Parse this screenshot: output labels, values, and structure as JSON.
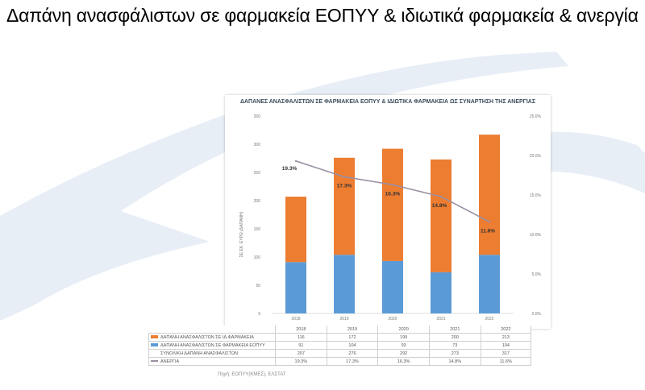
{
  "slide": {
    "title": "Δαπάνη ανασφάλιστων σε φαρμακεία ΕΟΠΥΥ & ιδιωτικά φαρμακεία & ανεργία",
    "source": "Πηγή: ΕΟΠΥΥ(ΚΜΕΣ), ΕΛΣΤΑΤ"
  },
  "colors": {
    "orange": "#ed7d31",
    "blue": "#5b9bd5",
    "line": "#9a8fa3",
    "logo": "#dfe8f3"
  },
  "chart_data": {
    "type": "bar",
    "title": "ΔΑΠΑΝΕΣ ΑΝΑΣΦΑΛΙΣΤΩΝ ΣΕ ΦΑΡΜΑΚΕΙΑ ΕΟΠΥΥ & ΙΔΙΩΤΙΚΑ ΦΑΡΜΑΚΕΙΑ ΩΣ ΣΥΝΑΡΤΗΣΗ ΤΗΣ ΑΝΕΡΓΙΑΣ",
    "categories": [
      "2018",
      "2019",
      "2020",
      "2021",
      "2022"
    ],
    "ylabel": "ΣΕ ΕΚ. ΕΥΡΩ (ΔΑΠΑΝΗ)",
    "ylim": [
      0,
      350
    ],
    "y_ticks": [
      "0",
      "50",
      "100",
      "150",
      "200",
      "250",
      "300",
      "350"
    ],
    "y2lim": [
      0,
      25
    ],
    "y2_ticks": [
      "0.0%",
      "5.0%",
      "10.0%",
      "15.0%",
      "20.0%",
      "25.0%"
    ],
    "series": [
      {
        "name": "ΔΑΠΑΝΗ ΑΝΑΣΦΑΛΙΣΤΩΝ ΣΕ ΙΔ.ΦΑΡΜΑΚΕΙΑ",
        "kind": "stacked-bar",
        "color": "#ed7d31",
        "values": [
          116,
          172,
          199,
          200,
          213
        ],
        "labels": [
          "116",
          "172",
          "199",
          "200",
          "213"
        ]
      },
      {
        "name": "ΔΑΠΑΝΗ ΑΝΑΣΦΑΛΙΣΤΩΝ ΣΕ ΦΑΡΜΑΚΕΙΑ ΕΟΠΥΥ",
        "kind": "stacked-bar",
        "color": "#5b9bd5",
        "values": [
          91,
          104,
          93,
          73,
          104
        ],
        "labels": [
          "91",
          "104",
          "93",
          "73",
          "104"
        ]
      },
      {
        "name": "ΣΥΝΟΛΙΚΗ ΔΑΠΑΝΗ ΑΝΑΣΦΑΛΙΣΤΩΝ",
        "kind": "total",
        "values": [
          207,
          276,
          292,
          273,
          317
        ],
        "labels": [
          "207",
          "276",
          "292",
          "273",
          "317"
        ]
      },
      {
        "name": "ΑΝΕΡΓΙΑ",
        "kind": "line",
        "axis": "secondary",
        "color": "#9a8fa3",
        "values": [
          19.3,
          17.3,
          16.3,
          14.8,
          11.6
        ],
        "labels": [
          "19.3%",
          "17.3%",
          "16.3%",
          "14.8%",
          "11.6%"
        ]
      }
    ],
    "data_table": true,
    "grid": false
  }
}
